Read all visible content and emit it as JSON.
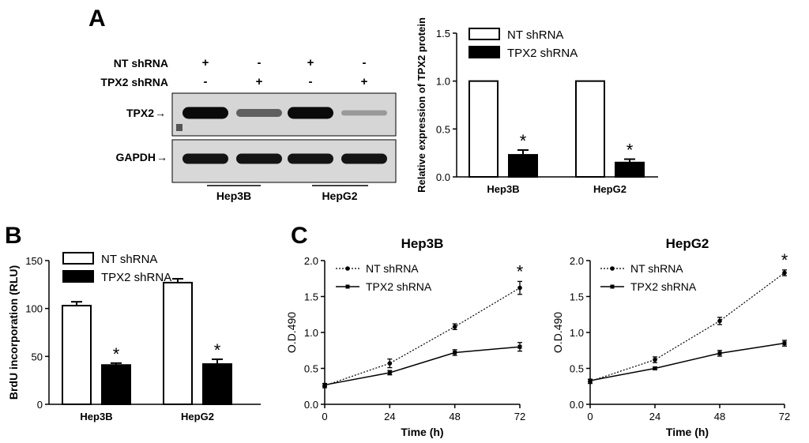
{
  "panel_letters": {
    "a": "A",
    "b": "B",
    "c": "C"
  },
  "blot": {
    "row_labels": {
      "nt": "NT shRNA",
      "tpx2": "TPX2 shRNA"
    },
    "lanes": [
      {
        "nt": "+",
        "tpx2": "-"
      },
      {
        "nt": "-",
        "tpx2": "+"
      },
      {
        "nt": "+",
        "tpx2": "-"
      },
      {
        "nt": "-",
        "tpx2": "+"
      }
    ],
    "band_labels": {
      "tpx2": "TPX2",
      "gapdh": "GAPDH"
    },
    "arrow": "→",
    "tpx2_band_intensity": [
      1.0,
      0.55,
      1.0,
      0.25
    ],
    "gapdh_band_intensity": [
      1.0,
      1.0,
      1.0,
      1.0
    ],
    "cell_lines": [
      "Hep3B",
      "HepG2"
    ]
  },
  "chart_data": [
    {
      "id": "A",
      "type": "bar",
      "title": "",
      "xlabel": "",
      "ylabel": "Relative expression of TPX2 protein",
      "categories": [
        "Hep3B",
        "HepG2"
      ],
      "series": [
        {
          "name": "NT shRNA",
          "values": [
            1.0,
            1.0
          ],
          "errors": [
            0,
            0
          ],
          "color": "#ffffff"
        },
        {
          "name": "TPX2 shRNA",
          "values": [
            0.23,
            0.15
          ],
          "errors": [
            0.05,
            0.035
          ],
          "color": "#000000"
        }
      ],
      "ylim": [
        0,
        1.5
      ],
      "yticks": [
        0.0,
        0.5,
        1.0,
        1.5
      ],
      "ytick_labels": [
        "0.0",
        "0.5",
        "1.0",
        "1.5"
      ],
      "annotations": [
        "*",
        "*"
      ],
      "legend": "top-right"
    },
    {
      "id": "B",
      "type": "bar",
      "title": "",
      "xlabel": "",
      "ylabel": "BrdU incorporation (RLU)",
      "categories": [
        "Hep3B",
        "HepG2"
      ],
      "series": [
        {
          "name": "NT shRNA",
          "values": [
            103,
            127
          ],
          "errors": [
            4,
            4
          ],
          "color": "#ffffff"
        },
        {
          "name": "TPX2 shRNA",
          "values": [
            41,
            42
          ],
          "errors": [
            2,
            5
          ],
          "color": "#000000"
        }
      ],
      "ylim": [
        0,
        150
      ],
      "yticks": [
        0,
        50,
        100,
        150
      ],
      "ytick_labels": [
        "0",
        "50",
        "100",
        "150"
      ],
      "annotations": [
        "*",
        "*"
      ],
      "legend": "top-left"
    },
    {
      "id": "C-Hep3B",
      "type": "line",
      "title": "Hep3B",
      "xlabel": "Time (h)",
      "ylabel": "O.D.490",
      "x": [
        0,
        24,
        48,
        72
      ],
      "series": [
        {
          "name": "NT shRNA",
          "values": [
            0.26,
            0.57,
            1.08,
            1.62
          ],
          "errors": [
            0.03,
            0.06,
            0.04,
            0.09
          ],
          "style": "dotted"
        },
        {
          "name": "TPX2 shRNA",
          "values": [
            0.27,
            0.44,
            0.72,
            0.8
          ],
          "errors": [
            0.02,
            0.03,
            0.04,
            0.06
          ],
          "style": "solid"
        }
      ],
      "xlim": [
        0,
        72
      ],
      "ylim": [
        0,
        2.0
      ],
      "xticks": [
        0,
        24,
        48,
        72
      ],
      "xtick_labels": [
        "0",
        "24",
        "48",
        "72"
      ],
      "yticks": [
        0,
        0.5,
        1.0,
        1.5,
        2.0
      ],
      "ytick_labels": [
        "0.0",
        "0.5",
        "1.0",
        "1.5",
        "2.0"
      ],
      "annotations": [
        "*"
      ],
      "legend": "top-left"
    },
    {
      "id": "C-HepG2",
      "type": "line",
      "title": "HepG2",
      "xlabel": "Time (h)",
      "ylabel": "O.D.490",
      "x": [
        0,
        24,
        48,
        72
      ],
      "series": [
        {
          "name": "NT shRNA",
          "values": [
            0.32,
            0.62,
            1.16,
            1.83
          ],
          "errors": [
            0.03,
            0.04,
            0.05,
            0.04
          ],
          "style": "dotted"
        },
        {
          "name": "TPX2 shRNA",
          "values": [
            0.33,
            0.5,
            0.71,
            0.85
          ],
          "errors": [
            0.02,
            0.02,
            0.04,
            0.04
          ],
          "style": "solid"
        }
      ],
      "xlim": [
        0,
        72
      ],
      "ylim": [
        0,
        2.0
      ],
      "xticks": [
        0,
        24,
        48,
        72
      ],
      "xtick_labels": [
        "0",
        "24",
        "48",
        "72"
      ],
      "yticks": [
        0,
        0.5,
        1.0,
        1.5,
        2.0
      ],
      "ytick_labels": [
        "0.0",
        "0.5",
        "1.0",
        "1.5",
        "2.0"
      ],
      "annotations": [
        "*"
      ],
      "legend": "top-left"
    }
  ]
}
